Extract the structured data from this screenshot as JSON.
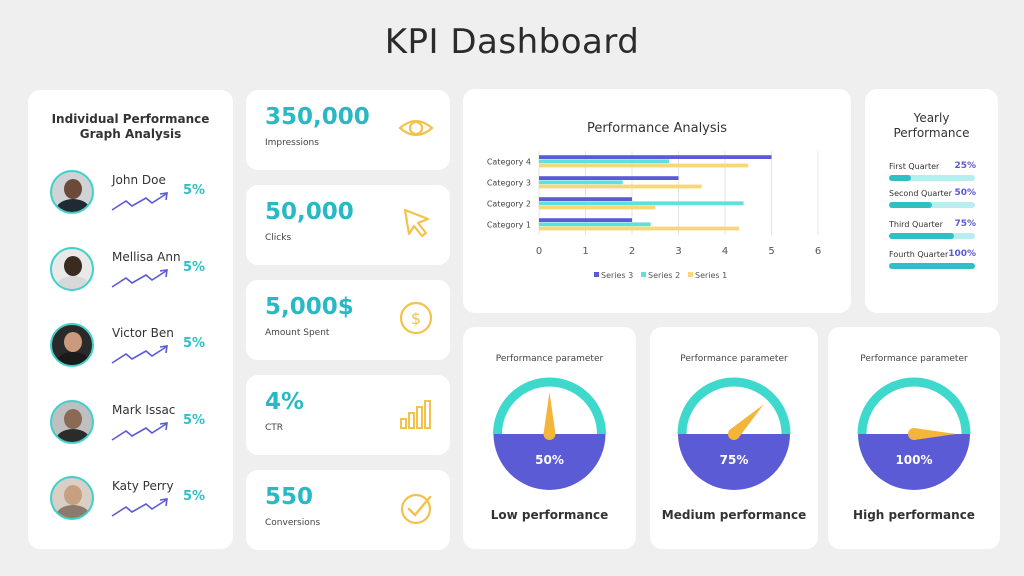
{
  "title": "KPI Dashboard",
  "individual": {
    "title_line1": "Individual Performance",
    "title_line2": "Graph Analysis",
    "people": [
      {
        "name": "John Doe",
        "percent": "5%"
      },
      {
        "name": "Mellisa Ann",
        "percent": "5%"
      },
      {
        "name": "Victor Ben",
        "percent": "5%"
      },
      {
        "name": "Mark Issac",
        "percent": "5%"
      },
      {
        "name": "Katy Perry",
        "percent": "5%"
      }
    ]
  },
  "kpis": [
    {
      "value": "350,000",
      "label": "Impressions",
      "icon": "eye-icon"
    },
    {
      "value": "50,000",
      "label": "Clicks",
      "icon": "cursor-icon"
    },
    {
      "value": "5,000$",
      "label": "Amount Spent",
      "icon": "dollar-icon"
    },
    {
      "value": "4%",
      "label": "CTR",
      "icon": "bar-chart-icon"
    },
    {
      "value": "550",
      "label": "Conversions",
      "icon": "check-circle-icon"
    }
  ],
  "chart_data": {
    "type": "bar",
    "orientation": "horizontal",
    "title": "Performance Analysis",
    "categories": [
      "Category 1",
      "Category 2",
      "Category 3",
      "Category 4"
    ],
    "series": [
      {
        "name": "Series 3",
        "color": "#5b5bd6",
        "values": [
          2,
          2,
          3,
          5
        ]
      },
      {
        "name": "Series 2",
        "color": "#5fe0dc",
        "values": [
          2.4,
          4.4,
          1.8,
          2.8
        ]
      },
      {
        "name": "Series 1",
        "color": "#f7d878",
        "values": [
          4.3,
          2.5,
          3.5,
          4.5
        ]
      }
    ],
    "xlim": [
      0,
      6
    ],
    "xticks": [
      "0",
      "1",
      "2",
      "3",
      "4",
      "5",
      "6"
    ],
    "legend": "bottom"
  },
  "yearly": {
    "title_line1": "Yearly",
    "title_line2": "Performance",
    "quarters": [
      {
        "label": "First Quarter",
        "value": "25%",
        "fraction": 0.25
      },
      {
        "label": "Second Quarter",
        "value": "50%",
        "fraction": 0.5
      },
      {
        "label": "Third Quarter",
        "value": "75%",
        "fraction": 0.75
      },
      {
        "label": "Fourth Quarter",
        "value": "100%",
        "fraction": 1.0
      }
    ]
  },
  "gauges": [
    {
      "subtitle": "Performance parameter",
      "value": "50%",
      "fraction": 0.5,
      "label": "Low performance"
    },
    {
      "subtitle": "Performance parameter",
      "value": "75%",
      "fraction": 0.75,
      "label": "Medium performance"
    },
    {
      "subtitle": "Performance parameter",
      "value": "100%",
      "fraction": 1.0,
      "label": "High performance"
    }
  ],
  "colors": {
    "teal": "#2fc0c6",
    "purple": "#5b5bd6",
    "yellow": "#f7d878",
    "needle": "#f3b53a",
    "arc": "#3fd8cc"
  }
}
